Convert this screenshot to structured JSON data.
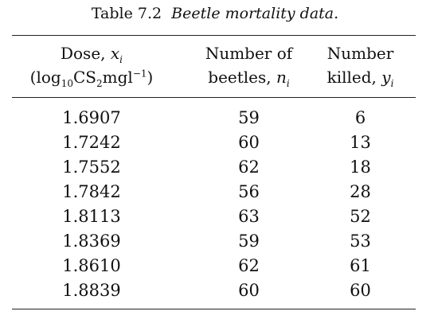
{
  "caption": {
    "label": "Table 7.2",
    "title": "Beetle mortality data."
  },
  "headers": {
    "dose": {
      "line1": "Dose, ",
      "var": "x",
      "sub": "i",
      "line2_pre": "(log",
      "line2_base": "10",
      "line2_mid": "CS",
      "line2_two": "2",
      "line2_unit": "mgl",
      "line2_exp": "−1",
      "line2_post": ")"
    },
    "number": {
      "line1": "Number of",
      "line2": "beetles, ",
      "var": "n",
      "sub": "i"
    },
    "killed": {
      "line1": "Number",
      "line2": "killed, ",
      "var": "y",
      "sub": "i"
    }
  },
  "rows": [
    {
      "dose": "1.6907",
      "n": "59",
      "y": "6"
    },
    {
      "dose": "1.7242",
      "n": "60",
      "y": "13"
    },
    {
      "dose": "1.7552",
      "n": "62",
      "y": "18"
    },
    {
      "dose": "1.7842",
      "n": "56",
      "y": "28"
    },
    {
      "dose": "1.8113",
      "n": "63",
      "y": "52"
    },
    {
      "dose": "1.8369",
      "n": "59",
      "y": "53"
    },
    {
      "dose": "1.8610",
      "n": "62",
      "y": "61"
    },
    {
      "dose": "1.8839",
      "n": "60",
      "y": "60"
    }
  ]
}
